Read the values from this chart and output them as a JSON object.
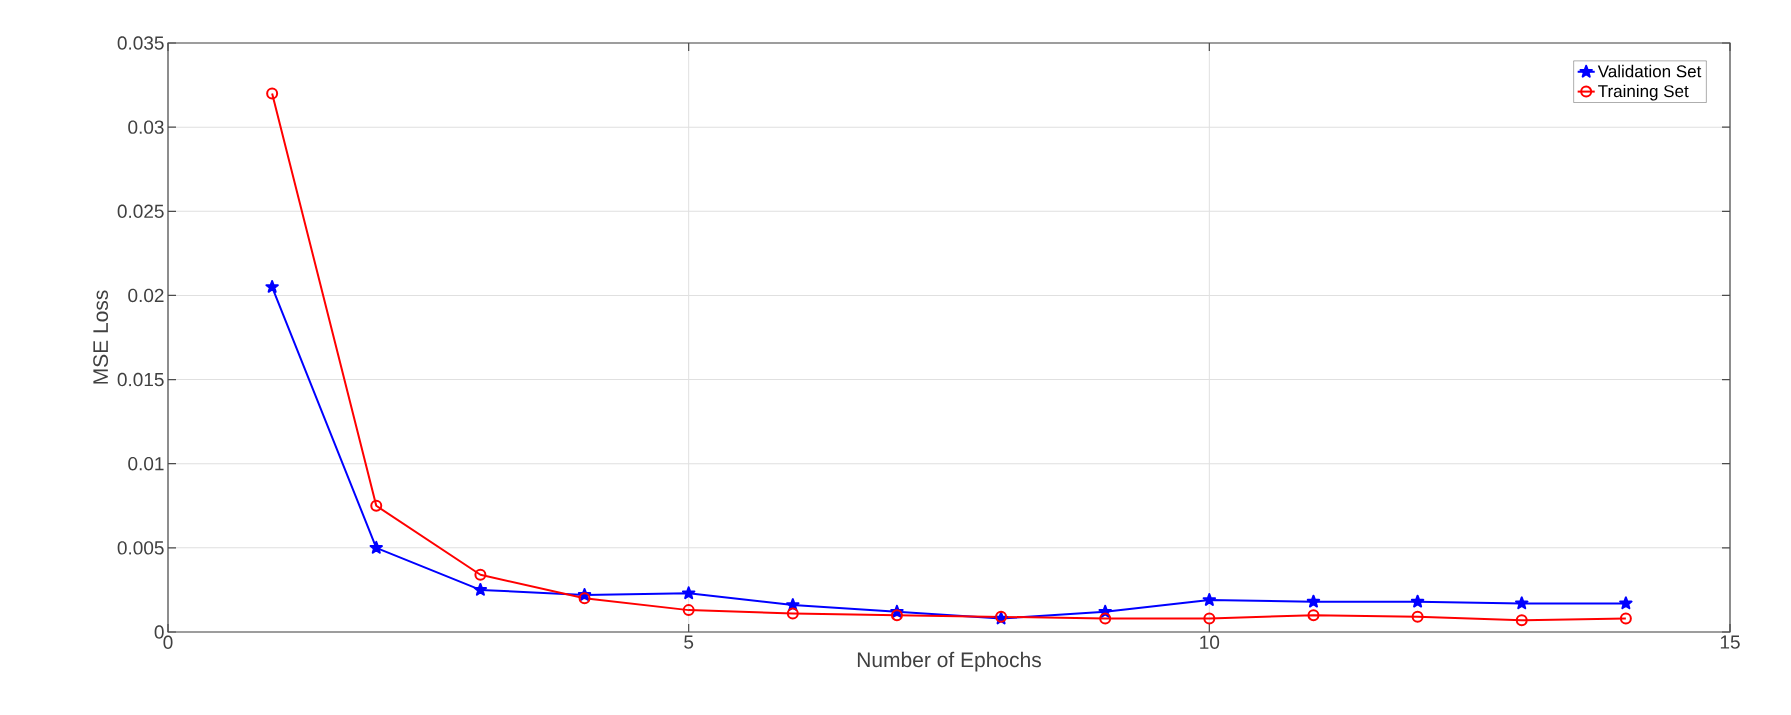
{
  "chart_data": {
    "type": "line",
    "xlabel": "Number of Ephochs",
    "ylabel": "MSE Loss",
    "x": [
      1,
      2,
      3,
      4,
      5,
      6,
      7,
      8,
      9,
      10,
      11,
      12,
      13,
      14
    ],
    "series": [
      {
        "name": "Validation Set",
        "color": "#0000ff",
        "marker": "star",
        "values": [
          0.0205,
          0.005,
          0.0025,
          0.0022,
          0.0023,
          0.0016,
          0.0012,
          0.0008,
          0.0012,
          0.0019,
          0.0018,
          0.0018,
          0.0017,
          0.0017
        ]
      },
      {
        "name": "Training Set",
        "color": "#ff0000",
        "marker": "circle",
        "values": [
          0.032,
          0.0075,
          0.0034,
          0.002,
          0.0013,
          0.0011,
          0.001,
          0.0009,
          0.0008,
          0.0008,
          0.001,
          0.0009,
          0.0007,
          0.0008
        ]
      }
    ],
    "xlim": [
      0,
      15
    ],
    "xticks": [
      0,
      5,
      10,
      15
    ],
    "ylim": [
      0,
      0.035
    ],
    "yticks": [
      0,
      0.005,
      0.01,
      0.015,
      0.02,
      0.025,
      0.03,
      0.035
    ],
    "grid": true,
    "legend": "top right",
    "line_style": "solid"
  }
}
